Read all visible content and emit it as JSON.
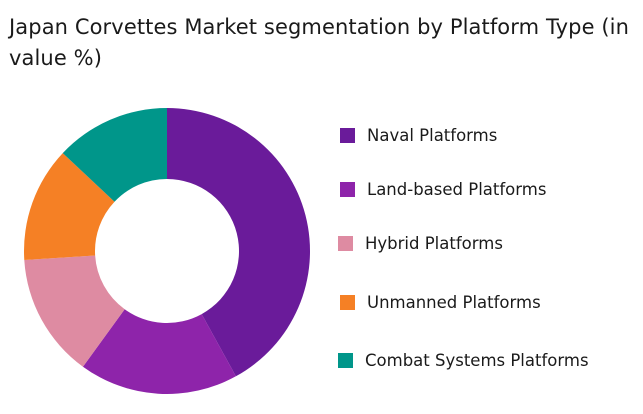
{
  "chart_data": {
    "type": "pie",
    "title": "Japan Corvettes Market segmentation by Platform Type (in value %)",
    "donut": true,
    "categories": [
      "Naval Platforms",
      "Land-based Platforms",
      "Hybrid Platforms",
      "Unmanned Platforms",
      "Combat Systems Platforms"
    ],
    "values": [
      42,
      18,
      14,
      13,
      13
    ],
    "colors": [
      "#6a1b9a",
      "#8e24aa",
      "#de8ba2",
      "#f58025",
      "#00968a"
    ],
    "legend_position": "right"
  }
}
